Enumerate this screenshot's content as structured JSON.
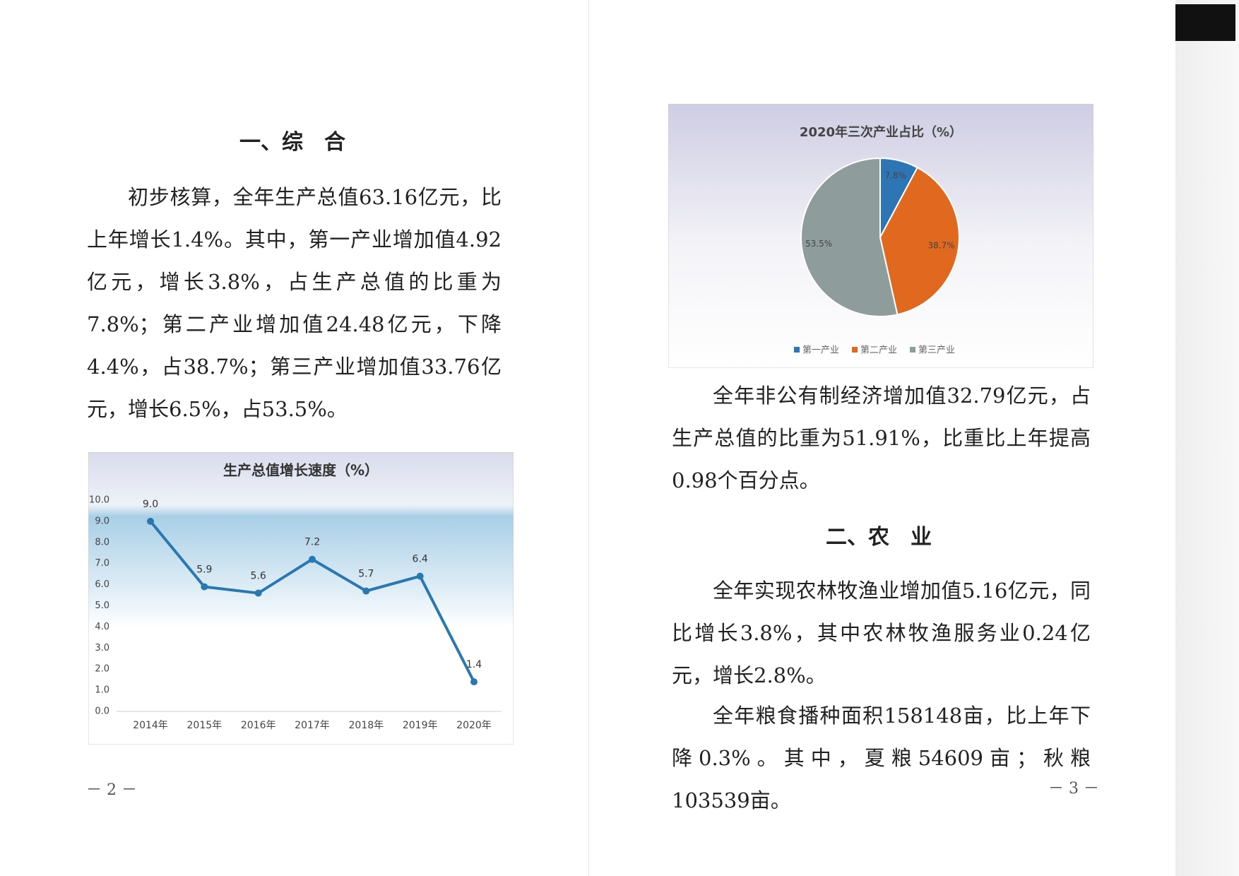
{
  "page_left": {
    "heading": "一、综　合",
    "paragraph": "初步核算，全年生产总值63.16亿元，比上年增长1.4%。其中，第一产业增加值4.92亿元，增长3.8%，占生产总值的比重为7.8%；第二产业增加值24.48亿元，下降4.4%，占38.7%；第三产业增加值33.76亿元，增长6.5%，占53.5%。",
    "page_number": "－ 2 －"
  },
  "chart_data": [
    {
      "type": "line",
      "title": "生产总值增长速度（%）",
      "categories": [
        "2014年",
        "2015年",
        "2016年",
        "2017年",
        "2018年",
        "2019年",
        "2020年"
      ],
      "values": [
        9,
        5.9,
        5.6,
        7.2,
        5.7,
        6.4,
        1.4
      ],
      "value_labels": [
        "9.0",
        "5.9",
        "5.6",
        "7.2",
        "5.7",
        "6.4",
        "1.4"
      ],
      "color": "#2a78b0",
      "ylim": [
        0,
        10
      ],
      "yticks": [
        {
          "value": 0,
          "label": "0.0"
        },
        {
          "value": 1,
          "label": "1.0"
        },
        {
          "value": 2,
          "label": "2.0"
        },
        {
          "value": 3,
          "label": "3.0"
        },
        {
          "value": 4,
          "label": "4.0"
        },
        {
          "value": 5,
          "label": "5.0"
        },
        {
          "value": 6,
          "label": "6.0"
        },
        {
          "value": 7,
          "label": "7.0"
        },
        {
          "value": 8,
          "label": "8.0"
        },
        {
          "value": 9,
          "label": "9.0"
        },
        {
          "value": 10,
          "label": "10.0"
        }
      ],
      "grid": false
    },
    {
      "type": "pie",
      "title": "2020年三次产业占比（%）",
      "categories": [
        "第一产业",
        "第二产业",
        "第三产业"
      ],
      "values": [
        7.8,
        38.7,
        53.5
      ],
      "value_labels": [
        "7.8%",
        "38.7%",
        "53.5%"
      ],
      "colors": [
        "#2e75b6",
        "#e0691f",
        "#8f9c9c"
      ],
      "legend": "bottom"
    }
  ],
  "page_right": {
    "paragraphs": [
      "全年非公有制经济增加值32.79亿元，占生产总值的比重为51.91%，比重比上年提高0.98个百分点。",
      "全年实现农林牧渔业增加值5.16亿元，同比增长3.8%，其中农林牧渔服务业0.24亿元，增长2.8%。",
      "全年粮食播种面积158148亩，比上年下降0.3%。其中，夏粮54609亩；秋粮103539亩。"
    ],
    "heading": "二、农　业",
    "page_number": "－ 3 －"
  }
}
